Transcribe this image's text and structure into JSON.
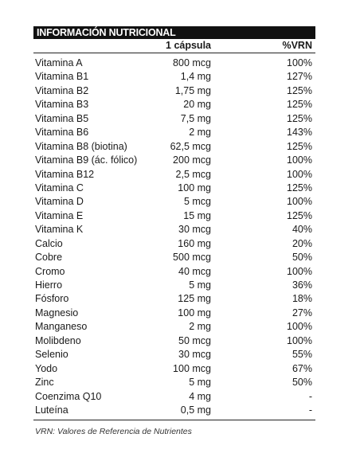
{
  "table": {
    "title": "INFORMACIÓN NUTRICIONAL",
    "header": [
      "1 cápsula",
      "%VRN"
    ],
    "rows": [
      [
        "Vitamina A",
        "800 mcg",
        "100%"
      ],
      [
        "Vitamina B1",
        "1,4 mg",
        "127%"
      ],
      [
        "Vitamina B2",
        "1,75 mg",
        "125%"
      ],
      [
        "Vitamina B3",
        "20 mg",
        "125%"
      ],
      [
        "Vitamina B5",
        "7,5 mg",
        "125%"
      ],
      [
        "Vitamina B6",
        "2 mg",
        "143%"
      ],
      [
        "Vitamina B8 (biotina)",
        "62,5 mcg",
        "125%"
      ],
      [
        "Vitamina B9 (ác. fólico)",
        "200 mcg",
        "100%"
      ],
      [
        "Vitamina B12",
        "2,5 mcg",
        "100%"
      ],
      [
        "Vitamina C",
        "100 mg",
        "125%"
      ],
      [
        "Vitamina D",
        "5 mcg",
        "100%"
      ],
      [
        "Vitamina E",
        "15 mg",
        "125%"
      ],
      [
        "Vitamina K",
        "30 mcg",
        "40%"
      ],
      [
        "Calcio",
        "160 mg",
        "20%"
      ],
      [
        "Cobre",
        "500 mcg",
        "50%"
      ],
      [
        "Cromo",
        "40 mcg",
        "100%"
      ],
      [
        "Hierro",
        "5 mg",
        "36%"
      ],
      [
        "Fósforo",
        "125 mg",
        "18%"
      ],
      [
        "Magnesio",
        "100 mg",
        "27%"
      ],
      [
        "Manganeso",
        "2 mg",
        "100%"
      ],
      [
        "Molibdeno",
        "50 mcg",
        "100%"
      ],
      [
        "Selenio",
        "30 mcg",
        "55%"
      ],
      [
        "Yodo",
        "100 mcg",
        "67%"
      ],
      [
        "Zinc",
        "5 mg",
        "50%"
      ],
      [
        "Coenzima Q10",
        "4 mg",
        "-"
      ],
      [
        "Luteína",
        "0,5 mg",
        "-"
      ]
    ],
    "footnote": "VRN: Valores de Referencia de Nutrientes"
  }
}
